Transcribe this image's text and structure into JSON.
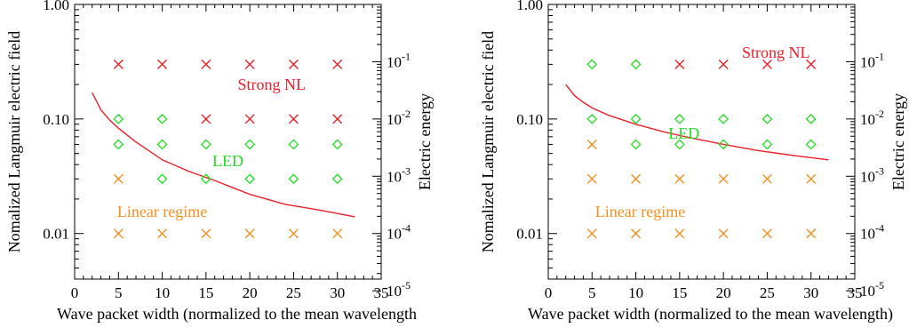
{
  "chart_data": [
    {
      "type": "scatter",
      "xlabel": "Wave packet width (normalized to the mean wavelength",
      "ylabel": "Nomalized Langmuir electric field",
      "y2label": "Electric energy",
      "xlim": [
        0,
        35
      ],
      "ylim": [
        0.004,
        1.0
      ],
      "yscale": "log",
      "x_ticks": [
        "0",
        "5",
        "10",
        "15",
        "20",
        "25",
        "30",
        "35"
      ],
      "y_ticks": [
        "0.01",
        "0.10",
        "1.00"
      ],
      "y2_ticks": [
        {
          "base": "10",
          "exp": "-1",
          "value": 0.1
        },
        {
          "base": "10",
          "exp": "-2",
          "value": 0.01
        },
        {
          "base": "10",
          "exp": "-3",
          "value": 0.001
        },
        {
          "base": "10",
          "exp": "-4",
          "value": 0.0001
        },
        {
          "base": "10",
          "exp": "-5",
          "value": 1e-05
        }
      ],
      "grid": false,
      "regions": [
        {
          "label": "Strong NL",
          "color": "#e8202a",
          "x": 22.5,
          "y": 0.2
        },
        {
          "label": "LED",
          "color": "#22dd22",
          "x": 17.5,
          "y": 0.043
        },
        {
          "label": "Linear regime",
          "color": "#f39022",
          "x": 10,
          "y": 0.0155
        }
      ],
      "points": [
        {
          "marker": "x",
          "color": "#e8202a",
          "y": 0.3,
          "x": [
            5,
            10,
            15,
            20,
            25,
            30
          ]
        },
        {
          "marker": "x",
          "color": "#e8202a",
          "y": 0.1,
          "x": [
            15,
            20,
            25,
            30
          ]
        },
        {
          "marker": "diamond",
          "color": "#22dd22",
          "y": 0.1,
          "x": [
            5,
            10
          ]
        },
        {
          "marker": "diamond",
          "color": "#22dd22",
          "y": 0.06,
          "x": [
            5,
            10,
            15,
            20,
            25,
            30
          ]
        },
        {
          "marker": "diamond",
          "color": "#22dd22",
          "y": 0.03,
          "x": [
            10,
            15,
            20,
            25,
            30
          ]
        },
        {
          "marker": "x",
          "color": "#f39022",
          "y": 0.03,
          "x": [
            5
          ]
        },
        {
          "marker": "x",
          "color": "#f39022",
          "y": 0.01,
          "x": [
            5,
            10,
            15,
            20,
            25,
            30
          ]
        }
      ],
      "curve": {
        "color": "#e8202a",
        "x": [
          2,
          3,
          4,
          5,
          7,
          10,
          13,
          16,
          20,
          24,
          28,
          32
        ],
        "y": [
          0.17,
          0.12,
          0.098,
          0.083,
          0.063,
          0.044,
          0.035,
          0.029,
          0.022,
          0.018,
          0.016,
          0.014
        ]
      }
    },
    {
      "type": "scatter",
      "xlabel": "Wave packet width (normalized to the mean wavelength)",
      "ylabel": "Nomalized Langmuir electric field",
      "y2label": "Electric energy",
      "xlim": [
        0,
        35
      ],
      "ylim": [
        0.004,
        1.0
      ],
      "yscale": "log",
      "x_ticks": [
        "0",
        "5",
        "10",
        "15",
        "20",
        "25",
        "30",
        "35"
      ],
      "y_ticks": [
        "0.01",
        "0.10",
        "1.00"
      ],
      "y2_ticks": [
        {
          "base": "10",
          "exp": "-1",
          "value": 0.1
        },
        {
          "base": "10",
          "exp": "-2",
          "value": 0.01
        },
        {
          "base": "10",
          "exp": "-3",
          "value": 0.001
        },
        {
          "base": "10",
          "exp": "-4",
          "value": 0.0001
        },
        {
          "base": "10",
          "exp": "-5",
          "value": 1e-05
        }
      ],
      "grid": false,
      "regions": [
        {
          "label": "Strong NL",
          "color": "#e8202a",
          "x": 26,
          "y": 0.38
        },
        {
          "label": "LED",
          "color": "#22dd22",
          "x": 15.5,
          "y": 0.075
        },
        {
          "label": "Linear regime",
          "color": "#f39022",
          "x": 10.5,
          "y": 0.0155
        }
      ],
      "points": [
        {
          "marker": "diamond",
          "color": "#22dd22",
          "y": 0.3,
          "x": [
            5,
            10
          ]
        },
        {
          "marker": "x",
          "color": "#e8202a",
          "y": 0.3,
          "x": [
            15,
            20,
            25,
            30
          ]
        },
        {
          "marker": "diamond",
          "color": "#22dd22",
          "y": 0.1,
          "x": [
            5,
            10,
            15,
            20,
            25,
            30
          ]
        },
        {
          "marker": "diamond",
          "color": "#22dd22",
          "y": 0.06,
          "x": [
            10,
            15,
            20,
            25,
            30
          ]
        },
        {
          "marker": "x",
          "color": "#f39022",
          "y": 0.06,
          "x": [
            5
          ]
        },
        {
          "marker": "x",
          "color": "#f39022",
          "y": 0.03,
          "x": [
            5,
            10,
            15,
            20,
            25,
            30
          ]
        },
        {
          "marker": "x",
          "color": "#f39022",
          "y": 0.01,
          "x": [
            5,
            10,
            15,
            20,
            25,
            30
          ]
        }
      ],
      "curve": {
        "color": "#e8202a",
        "x": [
          2,
          3,
          4,
          5,
          7,
          10,
          13,
          16,
          20,
          24,
          28,
          32
        ],
        "y": [
          0.2,
          0.16,
          0.14,
          0.125,
          0.107,
          0.09,
          0.078,
          0.069,
          0.06,
          0.053,
          0.048,
          0.044
        ]
      }
    }
  ]
}
